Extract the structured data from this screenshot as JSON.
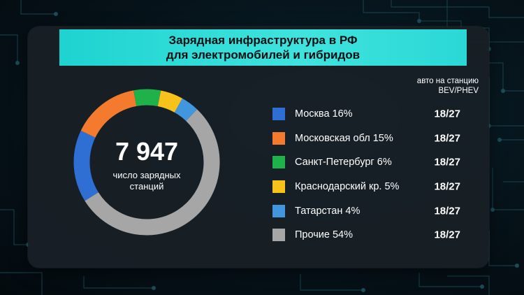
{
  "header": {
    "title_line1": "Зарядная инфраструктура в РФ",
    "title_line2": "для электромобилей и гибридов"
  },
  "summary": {
    "total": "7 947",
    "caption_line1": "число зарядных",
    "caption_line2": "станций"
  },
  "column_header": {
    "line1": "авто на станцию",
    "line2": "BEV/PHEV"
  },
  "legend": [
    {
      "label": "Москва  16%",
      "ratio": "18/27"
    },
    {
      "label": "Московская обл  15%",
      "ratio": "18/27"
    },
    {
      "label": "Санкт-Петербург  6%",
      "ratio": "18/27"
    },
    {
      "label": "Краснодарский кр.  5%",
      "ratio": "18/27"
    },
    {
      "label": "Татарстан 4%",
      "ratio": "18/27"
    },
    {
      "label": "Прочие  54%",
      "ratio": "18/27"
    }
  ],
  "chart_data": {
    "type": "pie",
    "categories": [
      "Москва",
      "Московская обл",
      "Санкт-Петербург",
      "Краснодарский кр.",
      "Татарстан",
      "Прочие"
    ],
    "values": [
      16,
      15,
      6,
      5,
      4,
      54
    ],
    "colors": [
      "#2f6ed3",
      "#f47a2d",
      "#1fb14a",
      "#f7c21a",
      "#4196dd",
      "#a6a6a6"
    ],
    "center_value": "7 947",
    "donut": true
  }
}
